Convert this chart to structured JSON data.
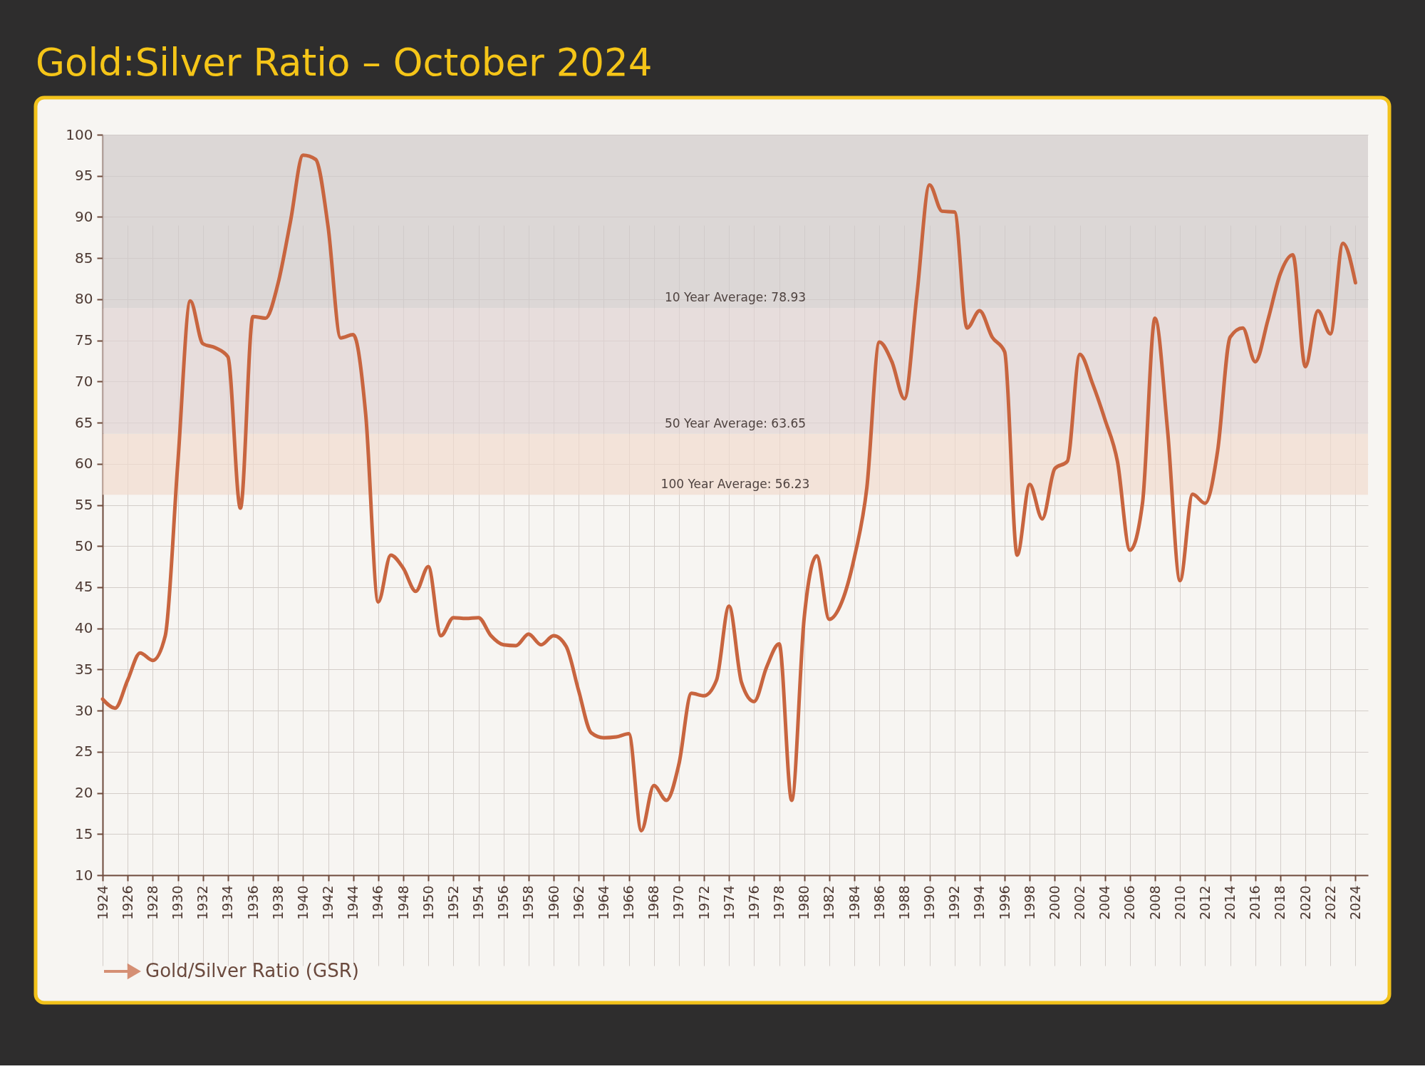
{
  "chart_data": {
    "type": "line",
    "title": "Gold:Silver Ratio – October 2024",
    "x": [
      1924,
      1925,
      1926,
      1927,
      1928,
      1929,
      1930,
      1931,
      1932,
      1933,
      1934,
      1935,
      1936,
      1937,
      1938,
      1939,
      1940,
      1941,
      1942,
      1943,
      1944,
      1945,
      1946,
      1947,
      1948,
      1949,
      1950,
      1951,
      1952,
      1953,
      1954,
      1955,
      1956,
      1957,
      1958,
      1959,
      1960,
      1961,
      1962,
      1963,
      1964,
      1965,
      1966,
      1967,
      1968,
      1969,
      1970,
      1971,
      1972,
      1973,
      1974,
      1975,
      1976,
      1977,
      1978,
      1979,
      1980,
      1981,
      1982,
      1983,
      1984,
      1985,
      1986,
      1987,
      1988,
      1989,
      1990,
      1991,
      1992,
      1993,
      1994,
      1995,
      1996,
      1997,
      1998,
      1999,
      2000,
      2001,
      2002,
      2003,
      2004,
      2005,
      2006,
      2007,
      2008,
      2009,
      2010,
      2011,
      2012,
      2013,
      2014,
      2015,
      2016,
      2017,
      2018,
      2019,
      2020,
      2021,
      2022,
      2023,
      2024
    ],
    "series": [
      {
        "name": "Gold/Silver Ratio (GSR)",
        "color": "#c8653f",
        "values": [
          31.4,
          30.3,
          33.7,
          37.0,
          36.1,
          39.1,
          60.0,
          79.8,
          74.6,
          74.1,
          73.0,
          54.6,
          77.9,
          77.7,
          81.9,
          89.5,
          97.5,
          97.0,
          88.8,
          75.3,
          75.7,
          66.0,
          43.2,
          48.9,
          47.3,
          44.5,
          47.5,
          39.1,
          41.3,
          41.2,
          41.3,
          39.1,
          38.0,
          37.9,
          39.3,
          38.0,
          39.1,
          37.8,
          32.4,
          27.3,
          26.7,
          26.8,
          27.2,
          15.4,
          20.9,
          19.1,
          23.5,
          32.1,
          31.8,
          33.7,
          42.7,
          33.4,
          31.1,
          35.3,
          38.1,
          19.1,
          41.3,
          48.8,
          41.1,
          43.2,
          48.6,
          57.1,
          74.8,
          72.4,
          67.9,
          80.6,
          93.9,
          90.7,
          90.6,
          76.5,
          78.6,
          75.4,
          73.6,
          48.9,
          57.5,
          53.3,
          59.4,
          60.3,
          73.3,
          69.8,
          65.4,
          60.3,
          49.5,
          55.2,
          77.7,
          64.1,
          45.8,
          56.3,
          55.2,
          61.6,
          75.4,
          76.5,
          72.4,
          77.4,
          83.1,
          85.4,
          71.8,
          78.6,
          75.8,
          86.8,
          82.0
        ]
      }
    ],
    "xlim": [
      1924,
      2025
    ],
    "xticks": [
      1924,
      1926,
      1928,
      1930,
      1932,
      1934,
      1936,
      1938,
      1940,
      1942,
      1944,
      1946,
      1948,
      1950,
      1952,
      1954,
      1956,
      1958,
      1960,
      1962,
      1964,
      1966,
      1968,
      1970,
      1972,
      1974,
      1976,
      1978,
      1980,
      1982,
      1984,
      1986,
      1988,
      1990,
      1992,
      1994,
      1996,
      1998,
      2000,
      2002,
      2004,
      2006,
      2008,
      2010,
      2012,
      2014,
      2016,
      2018,
      2020,
      2022,
      2024
    ],
    "ylim": [
      10,
      100
    ],
    "yticks": [
      10,
      15,
      20,
      25,
      30,
      35,
      40,
      45,
      50,
      55,
      60,
      65,
      70,
      75,
      80,
      85,
      90,
      95,
      100
    ],
    "bands": [
      {
        "axis": "y",
        "from": 78.93,
        "to": 100,
        "label": "10 Year Average: 78.93",
        "color": "#dcd7d7"
      },
      {
        "axis": "y",
        "from": 63.65,
        "to": 78.93,
        "label": "50 Year Average: 63.65",
        "color": "#e6dddc"
      },
      {
        "axis": "y",
        "from": 56.23,
        "to": 63.65,
        "label": "100 Year Average: 56.23",
        "color": "#f3e3d9"
      }
    ],
    "grid": true,
    "legend": "bottom left",
    "marker": "none",
    "line_style": "solid"
  }
}
